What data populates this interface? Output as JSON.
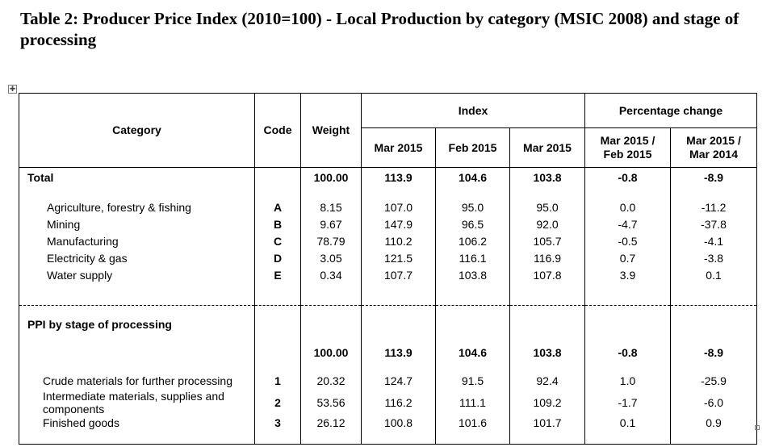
{
  "title": "Table 2: Producer Price Index (2010=100) - Local Production by category (MSIC 2008) and stage of processing",
  "headers": {
    "category": "Category",
    "code": "Code",
    "weight": "Weight",
    "index": "Index",
    "pct_change": "Percentage change",
    "index_cols": [
      "Mar 2015",
      "Feb 2015",
      "Mar 2015"
    ],
    "pct_cols": [
      "Mar 2015 / Feb 2015",
      "Mar 2015 / Mar 2014"
    ]
  },
  "total": {
    "label": "Total",
    "weight": "100.00",
    "values": [
      "113.9",
      "104.6",
      "103.8",
      "-0.8",
      "-8.9"
    ]
  },
  "categories": [
    {
      "label": "Agriculture, forestry & fishing",
      "code": "A",
      "weight": "8.15",
      "values": [
        "107.0",
        "95.0",
        "95.0",
        "0.0",
        "-11.2"
      ]
    },
    {
      "label": "Mining",
      "code": "B",
      "weight": "9.67",
      "values": [
        "147.9",
        "96.5",
        "92.0",
        "-4.7",
        "-37.8"
      ]
    },
    {
      "label": "Manufacturing",
      "code": "C",
      "weight": "78.79",
      "values": [
        "110.2",
        "106.2",
        "105.7",
        "-0.5",
        "-4.1"
      ]
    },
    {
      "label": "Electricity & gas",
      "code": "D",
      "weight": "3.05",
      "values": [
        "121.5",
        "116.1",
        "116.9",
        "0.7",
        "-3.8"
      ]
    },
    {
      "label": "Water supply",
      "code": "E",
      "weight": "0.34",
      "values": [
        "107.7",
        "103.8",
        "107.8",
        "3.9",
        "0.1"
      ]
    }
  ],
  "stage_total": {
    "label": "PPI by stage of processing",
    "weight": "100.00",
    "values": [
      "113.9",
      "104.6",
      "103.8",
      "-0.8",
      "-8.9"
    ]
  },
  "stages": [
    {
      "label": "Crude materials for further processing",
      "code": "1",
      "weight": "20.32",
      "values": [
        "124.7",
        "91.5",
        "92.4",
        "1.0",
        "-25.9"
      ]
    },
    {
      "label": "Intermediate materials, supplies and components",
      "code": "2",
      "weight": "53.56",
      "values": [
        "116.2",
        "111.1",
        "109.2",
        "-1.7",
        "-6.0"
      ]
    },
    {
      "label": "Finished goods",
      "code": "3",
      "weight": "26.12",
      "values": [
        "100.8",
        "101.6",
        "101.7",
        "0.1",
        "0.9"
      ]
    }
  ],
  "icons": {
    "move_handle": "move-icon",
    "resize_handle": "resize-icon"
  }
}
